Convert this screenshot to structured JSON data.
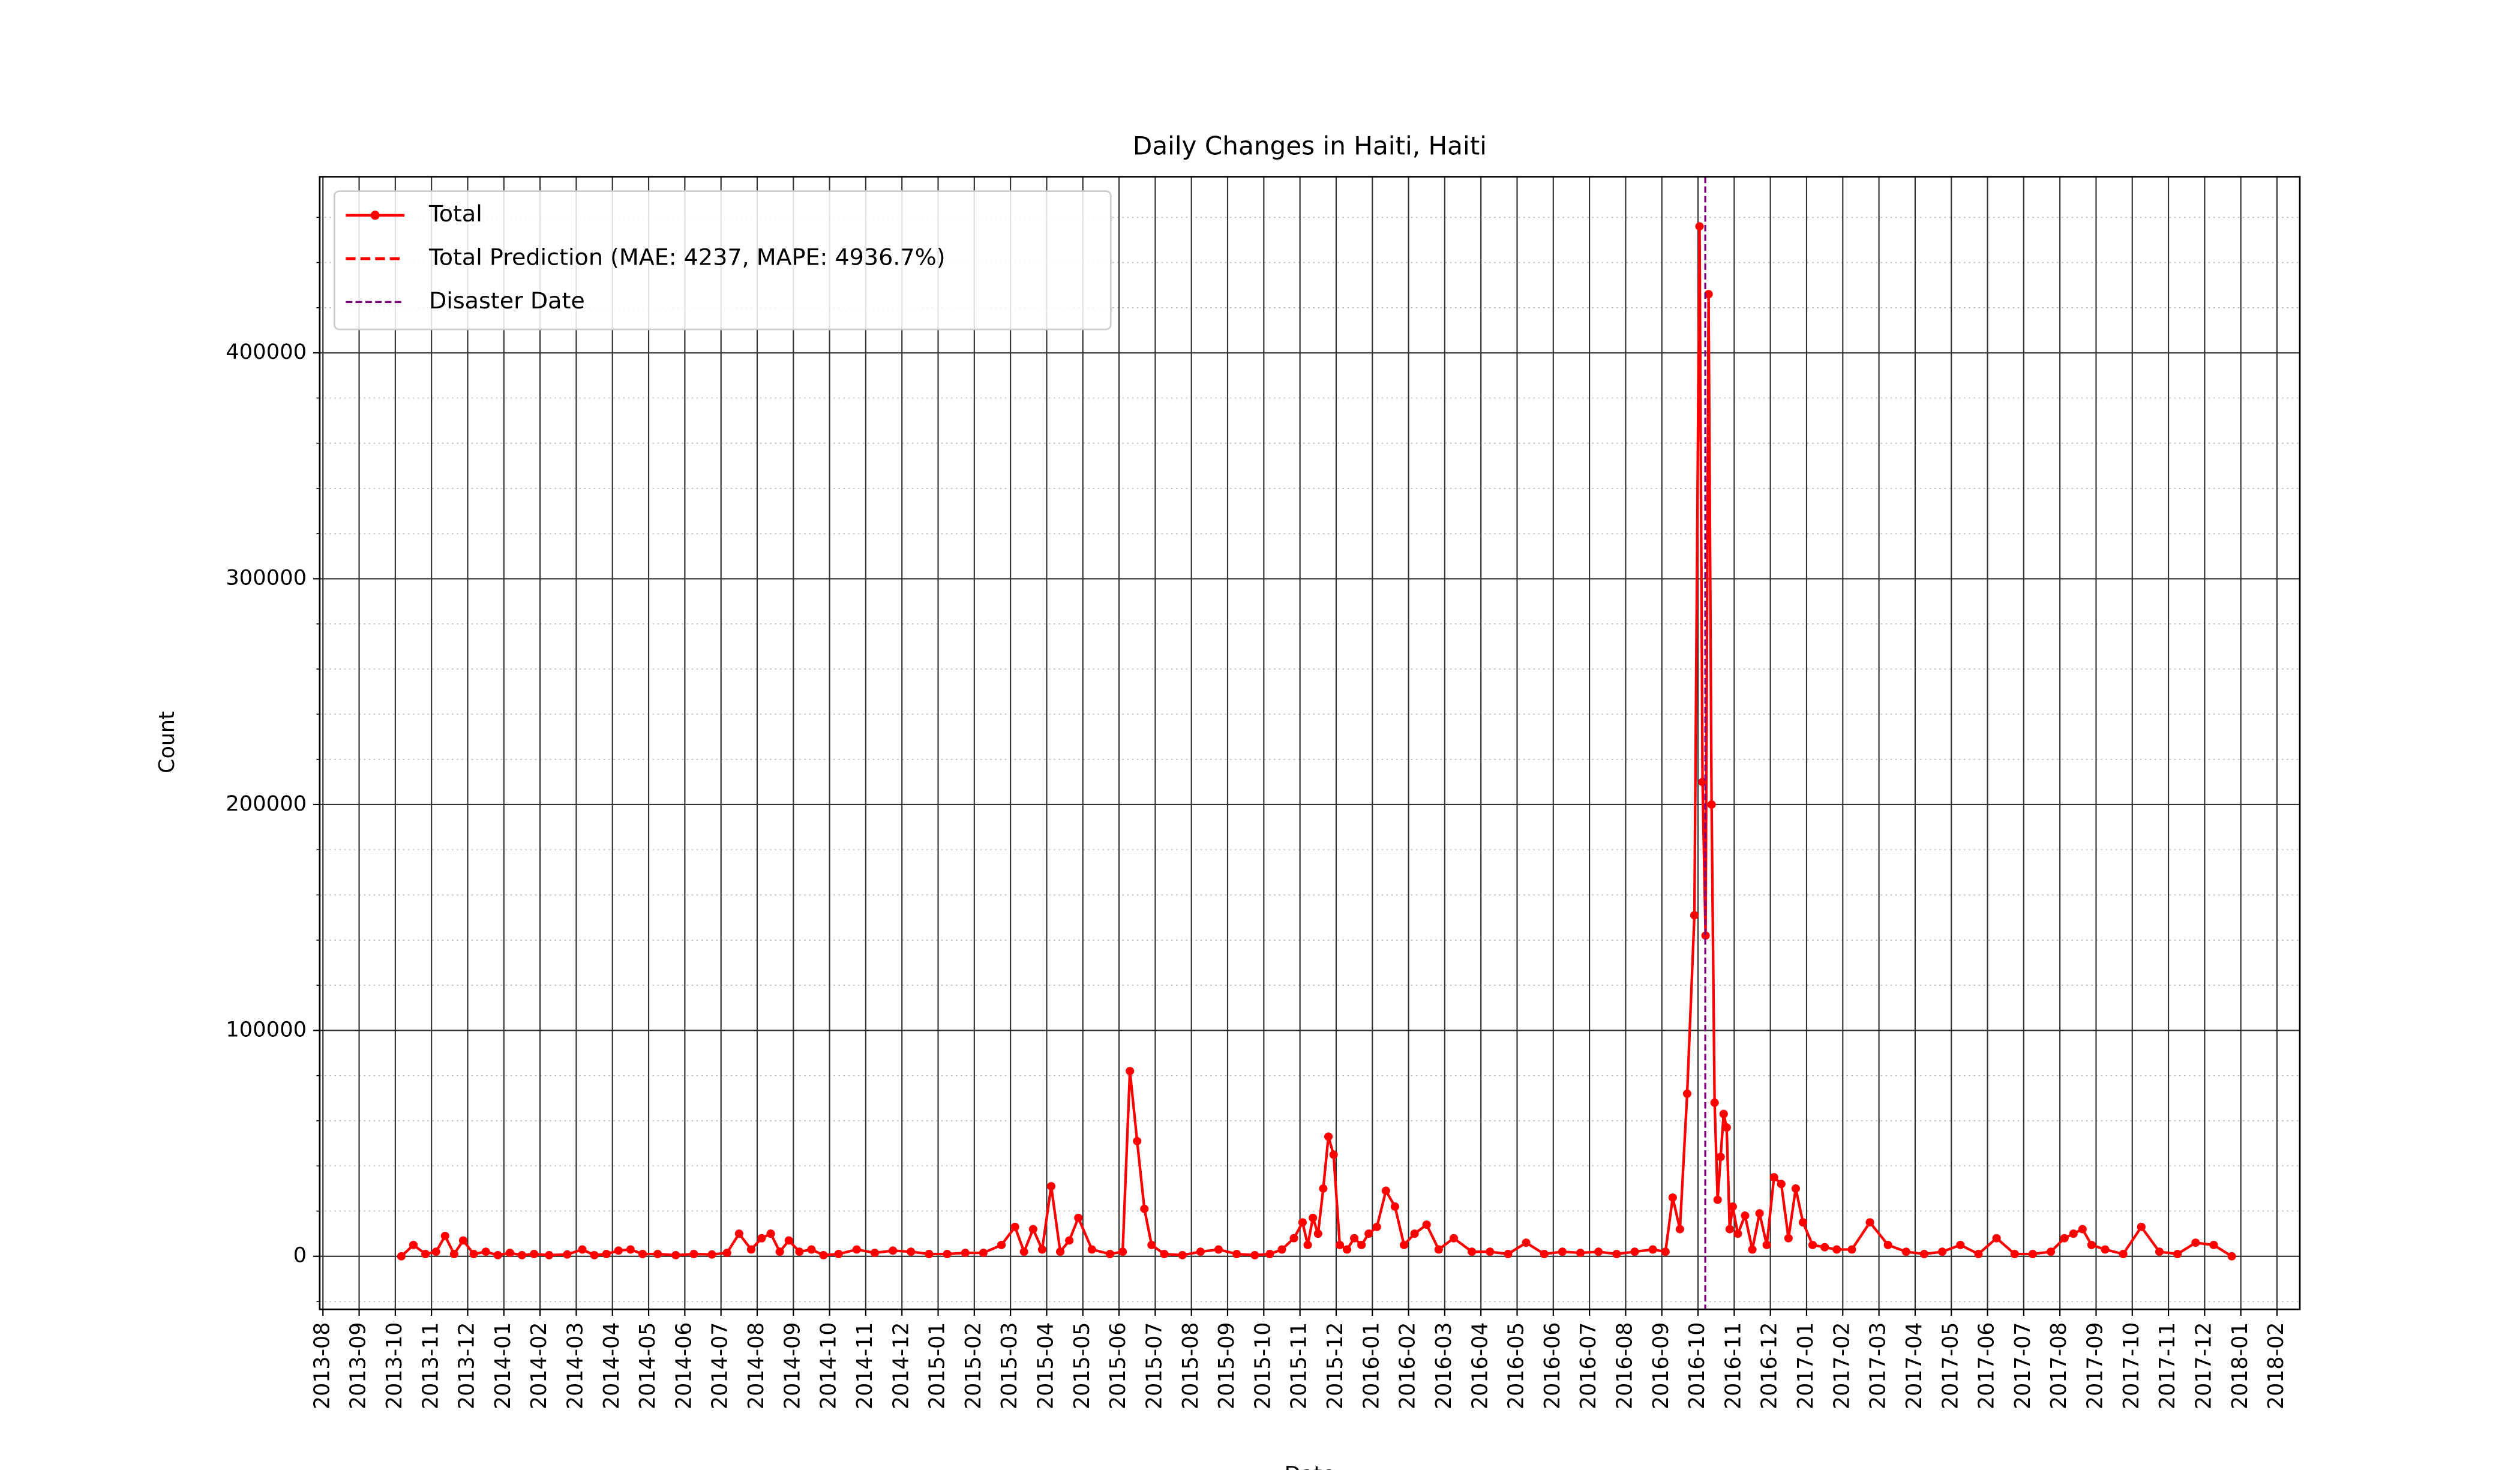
{
  "chart_data": {
    "type": "line",
    "title": "Daily Changes in Haiti, Haiti",
    "xlabel": "Date",
    "ylabel": "Count",
    "grid": true,
    "minor_grid": true,
    "legend": "upper left",
    "xlim": [
      "2013-08",
      "2018-03"
    ],
    "xticks": [
      "2013-08",
      "2013-09",
      "2013-10",
      "2013-11",
      "2013-12",
      "2014-01",
      "2014-02",
      "2014-03",
      "2014-04",
      "2014-05",
      "2014-06",
      "2014-07",
      "2014-08",
      "2014-09",
      "2014-10",
      "2014-11",
      "2014-12",
      "2015-01",
      "2015-02",
      "2015-03",
      "2015-04",
      "2015-05",
      "2015-06",
      "2015-07",
      "2015-08",
      "2015-09",
      "2015-10",
      "2015-11",
      "2015-12",
      "2016-01",
      "2016-02",
      "2016-03",
      "2016-04",
      "2016-05",
      "2016-06",
      "2016-07",
      "2016-08",
      "2016-09",
      "2016-10",
      "2016-11",
      "2016-12",
      "2017-01",
      "2017-02",
      "2017-03",
      "2017-04",
      "2017-05",
      "2017-06",
      "2017-07",
      "2017-08",
      "2017-09",
      "2017-10",
      "2017-11",
      "2017-12",
      "2018-01",
      "2018-02"
    ],
    "ylim": [
      -23500,
      478000
    ],
    "yticks": [
      0,
      100000,
      200000,
      300000,
      400000
    ],
    "yminorticks": [
      -20000,
      20000,
      40000,
      60000,
      80000,
      120000,
      140000,
      160000,
      180000,
      220000,
      240000,
      260000,
      280000,
      320000,
      340000,
      360000,
      380000,
      420000,
      440000,
      460000
    ],
    "x": [
      "2013-10",
      "2013-10",
      "2013-10",
      "2013-11",
      "2013-11",
      "2013-11",
      "2013-11",
      "2013-12",
      "2013-12",
      "2013-12",
      "2014-01",
      "2014-01",
      "2014-01",
      "2014-02",
      "2014-02",
      "2014-03",
      "2014-03",
      "2014-03",
      "2014-04",
      "2014-04",
      "2014-04",
      "2014-05",
      "2014-05",
      "2014-06",
      "2014-06",
      "2014-07",
      "2014-07",
      "2014-07",
      "2014-08",
      "2014-08",
      "2014-08",
      "2014-08",
      "2014-09",
      "2014-09",
      "2014-09",
      "2014-10",
      "2014-10",
      "2014-11",
      "2014-11",
      "2014-12",
      "2014-12",
      "2015-01",
      "2015-01",
      "2015-02",
      "2015-02",
      "2015-03",
      "2015-03",
      "2015-03",
      "2015-03",
      "2015-04",
      "2015-04",
      "2015-04",
      "2015-04",
      "2015-05",
      "2015-05",
      "2015-06",
      "2015-06",
      "2015-06",
      "2015-06",
      "2015-06",
      "2015-07",
      "2015-07",
      "2015-08",
      "2015-08",
      "2015-09",
      "2015-09",
      "2015-10",
      "2015-10",
      "2015-10",
      "2015-11",
      "2015-11",
      "2015-11",
      "2015-11",
      "2015-11",
      "2015-11",
      "2015-11",
      "2015-12",
      "2015-12",
      "2015-12",
      "2015-12",
      "2015-12",
      "2016-01",
      "2016-01",
      "2016-01",
      "2016-01",
      "2016-02",
      "2016-02",
      "2016-02",
      "2016-03",
      "2016-03",
      "2016-04",
      "2016-04",
      "2016-05",
      "2016-05",
      "2016-06",
      "2016-06",
      "2016-07",
      "2016-07",
      "2016-08",
      "2016-08",
      "2016-09",
      "2016-09",
      "2016-09",
      "2016-09",
      "2016-09",
      "2016-10",
      "2016-10",
      "2016-10",
      "2016-10",
      "2016-10",
      "2016-10",
      "2016-10",
      "2016-10",
      "2016-10",
      "2016-10",
      "2016-10",
      "2016-10",
      "2016-11",
      "2016-11",
      "2016-11",
      "2016-11",
      "2016-11",
      "2016-12",
      "2016-12",
      "2016-12",
      "2016-12",
      "2016-12",
      "2017-01",
      "2017-01",
      "2017-01",
      "2017-02",
      "2017-02",
      "2017-03",
      "2017-03",
      "2017-04",
      "2017-04",
      "2017-05",
      "2017-05",
      "2017-06",
      "2017-06",
      "2017-07",
      "2017-07",
      "2017-08",
      "2017-08",
      "2017-08",
      "2017-08",
      "2017-09",
      "2017-09",
      "2017-10",
      "2017-10",
      "2017-11",
      "2017-11",
      "2017-12",
      "2017-12"
    ],
    "series": [
      {
        "name": "Total",
        "color": "#ff0000",
        "marker": "o",
        "values": [
          0,
          5000,
          1000,
          2000,
          9000,
          1000,
          7000,
          1000,
          2000,
          500,
          1500,
          500,
          1000,
          500,
          800,
          3000,
          500,
          1000,
          2500,
          3000,
          1000,
          1000,
          500,
          1000,
          800,
          1500,
          10000,
          3000,
          8000,
          10000,
          2000,
          7000,
          2000,
          3000,
          500,
          1000,
          3000,
          1500,
          2500,
          2000,
          1000,
          1000,
          1500,
          1500,
          5000,
          13000,
          2000,
          12000,
          3000,
          31000,
          2000,
          7000,
          17000,
          3000,
          1000,
          2000,
          82000,
          51000,
          21000,
          5000,
          1000,
          500,
          2000,
          3000,
          1000,
          500,
          1000,
          3000,
          8000,
          15000,
          5000,
          17000,
          10000,
          30000,
          53000,
          45000,
          5000,
          3000,
          8000,
          5000,
          10000,
          13000,
          29000,
          22000,
          5000,
          10000,
          14000,
          3000,
          8000,
          2000,
          2000,
          1000,
          6000,
          1000,
          2000,
          1500,
          2000,
          1000,
          2000,
          3000,
          2000,
          26000,
          12000,
          72000,
          151000,
          456000,
          210000,
          142000,
          426000,
          200000,
          68000,
          25000,
          44000,
          63000,
          57000,
          12000,
          22000,
          10000,
          18000,
          3000,
          19000,
          5000,
          35000,
          32000,
          8000,
          30000,
          15000,
          5000,
          4000,
          3000,
          3000,
          15000,
          5000,
          2000,
          1000,
          2000,
          5000,
          1000,
          8000,
          1000,
          1000,
          2000,
          8000,
          10000,
          12000,
          5000,
          3000,
          1000,
          13000,
          2000,
          1000,
          6000,
          5000,
          0
        ]
      }
    ],
    "prediction": {
      "name": "Total Prediction (MAE: 4237, MAPE: 4936.7%)",
      "color": "#ff0000"
    },
    "disaster": {
      "name": "Disaster Date",
      "date": "2016-10",
      "color": "#800080"
    }
  }
}
